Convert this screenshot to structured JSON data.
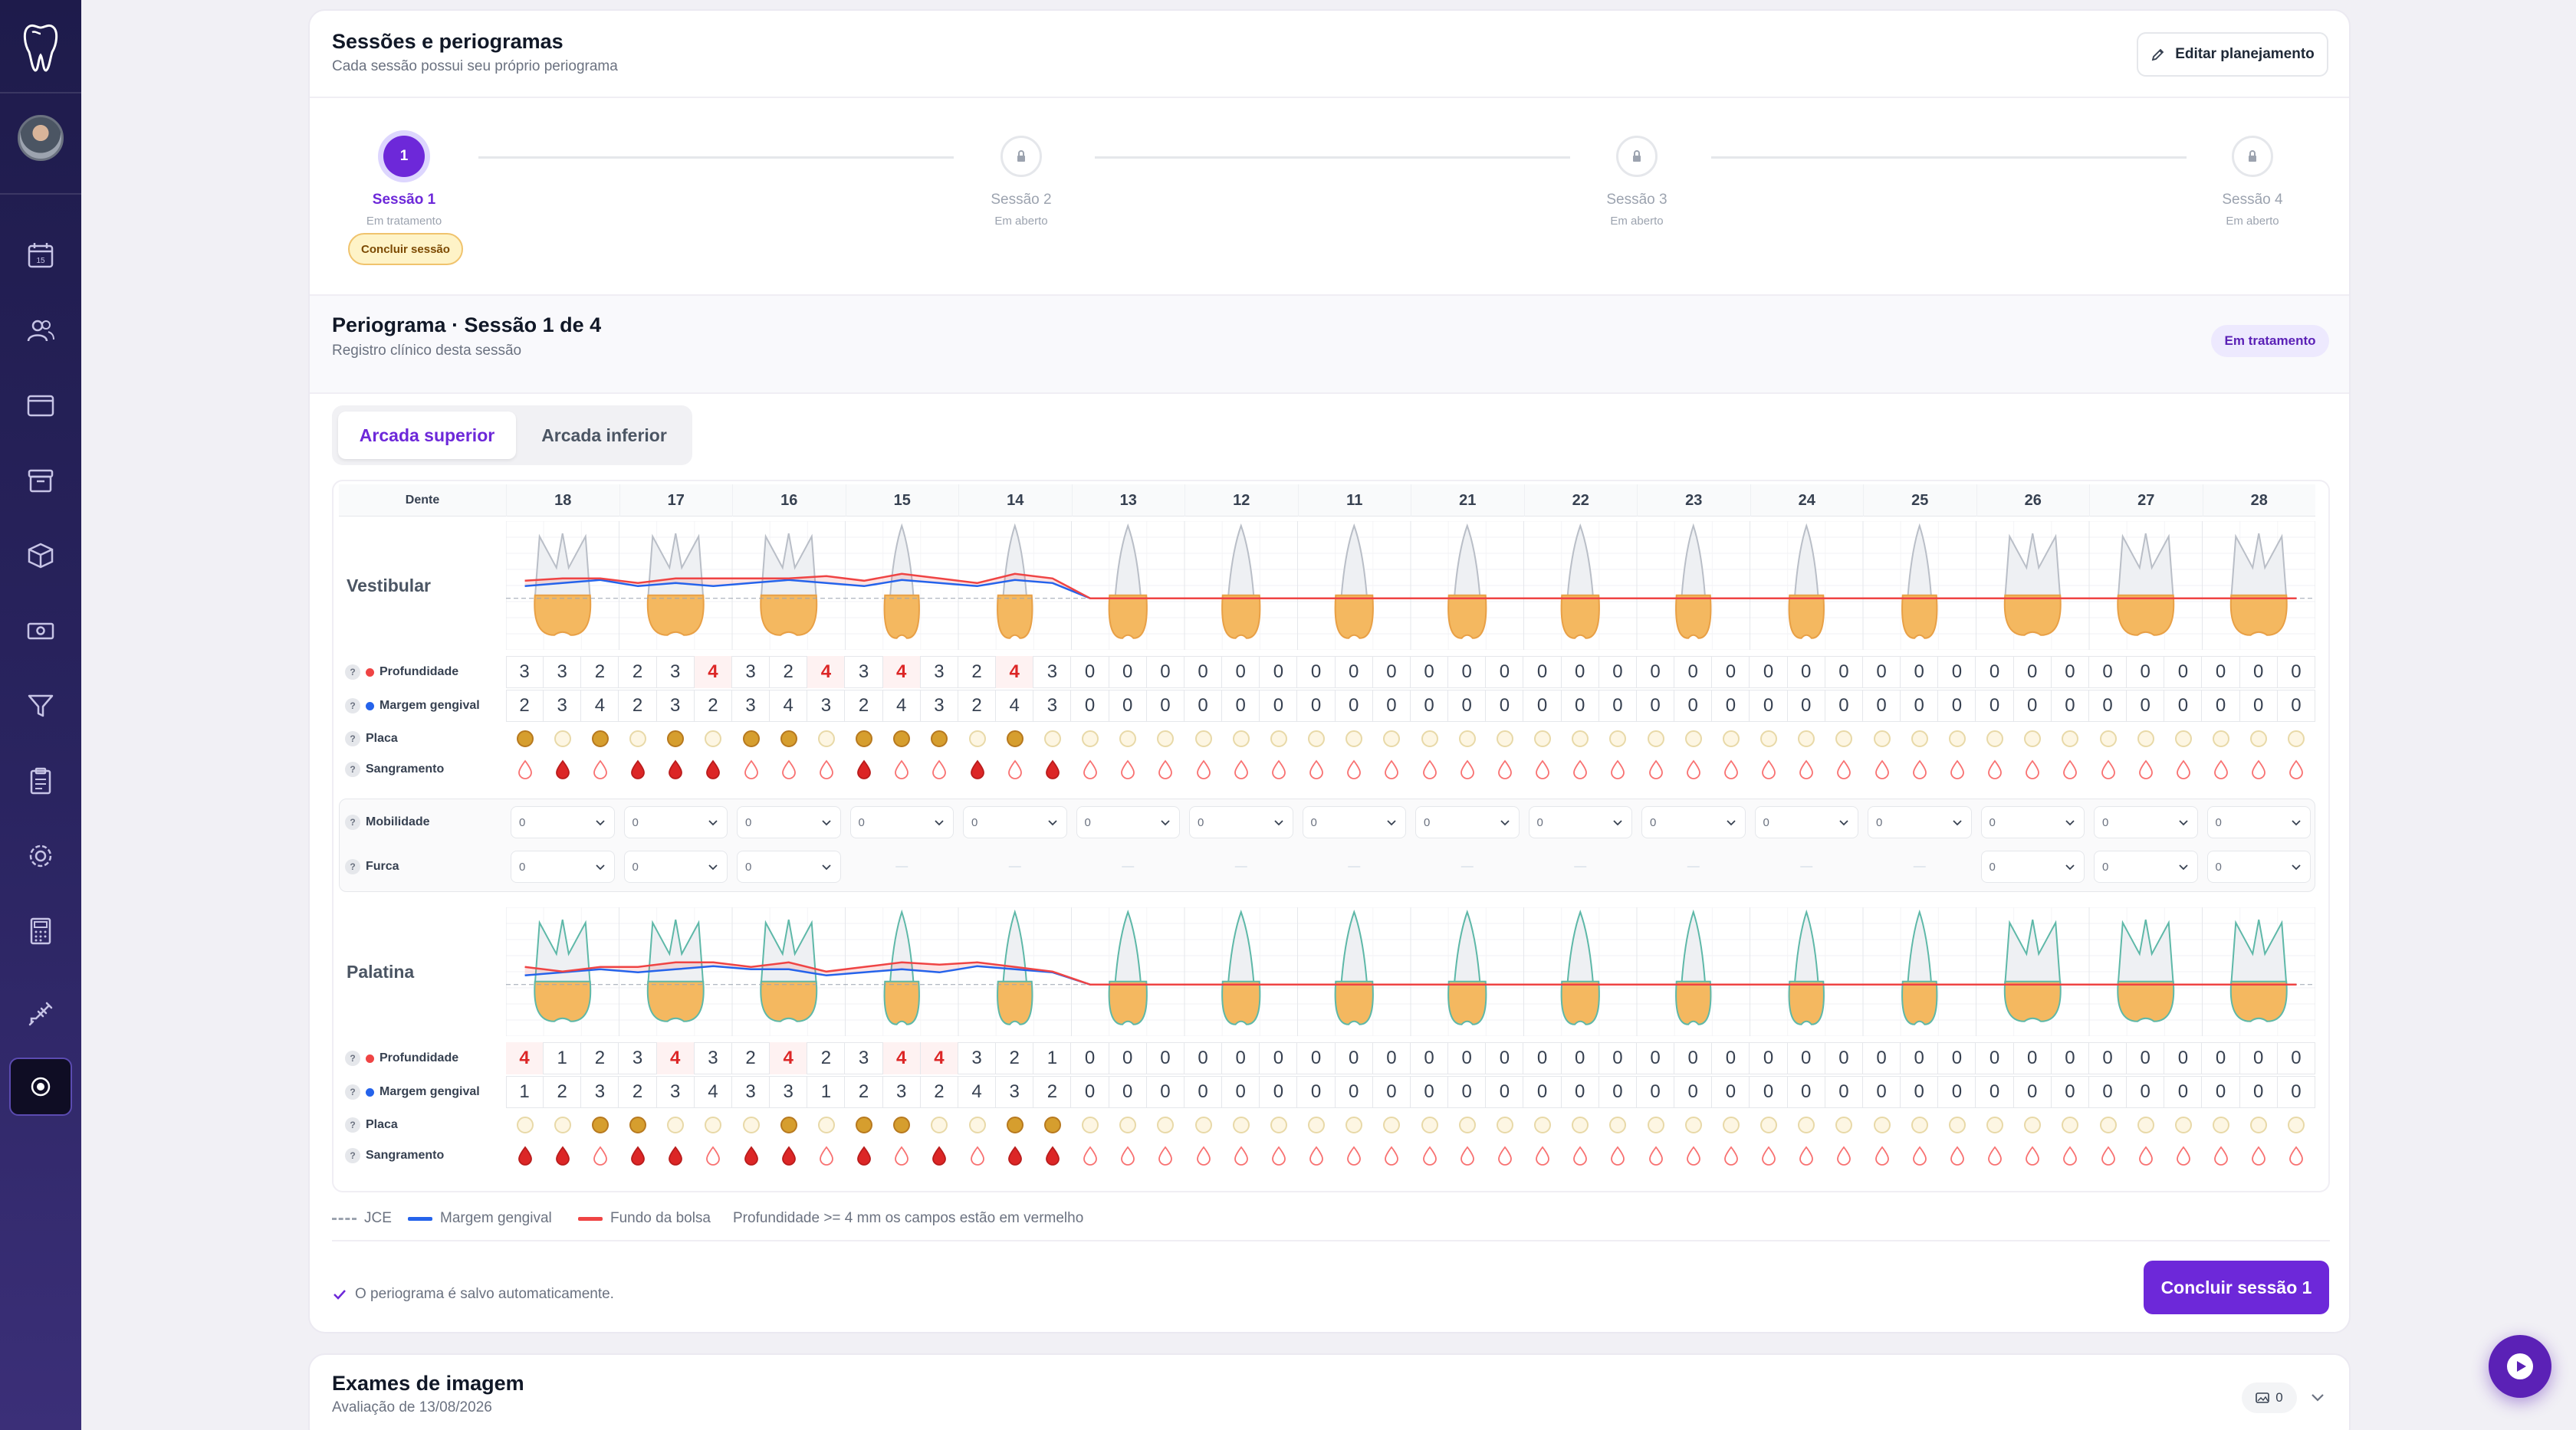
{
  "sidebar": {
    "items": [
      "calendar-icon",
      "patients-icon",
      "window-icon",
      "archive-icon",
      "box-icon",
      "money-icon",
      "filter-icon",
      "clipboard-icon",
      "settings-icon",
      "calculator-icon",
      "syringe-icon",
      "record-icon"
    ],
    "calendar_day": "15"
  },
  "sessions_card": {
    "title": "Sessões e periogramas",
    "subtitle": "Cada sessão possui seu próprio periograma",
    "edit_button": "Editar planejamento",
    "steps": [
      {
        "label": "Sessão 1",
        "status": "Em tratamento",
        "number": "1",
        "active": true
      },
      {
        "label": "Sessão 2",
        "status": "Em aberto",
        "number": "",
        "active": false
      },
      {
        "label": "Sessão 3",
        "status": "Em aberto",
        "number": "",
        "active": false
      },
      {
        "label": "Sessão 4",
        "status": "Em aberto",
        "number": "",
        "active": false
      }
    ],
    "conclude_session_chip": "Concluir sessão"
  },
  "periogram": {
    "title": "Periograma · Sessão 1 de 4",
    "subtitle": "Registro clínico desta sessão",
    "badge": "Em tratamento",
    "tabs": [
      "Arcada superior",
      "Arcada inferior"
    ],
    "active_tab": "Arcada superior",
    "dente_label": "Dente",
    "teeth": [
      "18",
      "17",
      "16",
      "15",
      "14",
      "13",
      "12",
      "11",
      "21",
      "22",
      "23",
      "24",
      "25",
      "26",
      "27",
      "28"
    ],
    "vestibular_label": "Vestibular",
    "palatina_label": "Palatina",
    "row_labels": {
      "profundidade": "Profundidade",
      "margem": "Margem gengival",
      "placa": "Placa",
      "sangramento": "Sangramento",
      "mobilidade": "Mobilidade",
      "furca": "Furca"
    },
    "vestibular": {
      "profundidade": [
        3,
        3,
        2,
        2,
        3,
        4,
        3,
        2,
        4,
        3,
        4,
        3,
        2,
        4,
        3,
        0,
        0,
        0,
        0,
        0,
        0,
        0,
        0,
        0,
        0,
        0,
        0,
        0,
        0,
        0,
        0,
        0,
        0,
        0,
        0,
        0,
        0,
        0,
        0,
        0,
        0,
        0,
        0,
        0,
        0,
        0,
        0,
        0
      ],
      "margem": [
        2,
        3,
        4,
        2,
        3,
        2,
        3,
        4,
        3,
        2,
        4,
        3,
        2,
        4,
        3,
        0,
        0,
        0,
        0,
        0,
        0,
        0,
        0,
        0,
        0,
        0,
        0,
        0,
        0,
        0,
        0,
        0,
        0,
        0,
        0,
        0,
        0,
        0,
        0,
        0,
        0,
        0,
        0,
        0,
        0,
        0,
        0,
        0
      ],
      "placa": [
        1,
        0,
        1,
        0,
        1,
        0,
        1,
        1,
        0,
        1,
        1,
        1,
        0,
        1,
        0,
        0,
        0,
        0,
        0,
        0,
        0,
        0,
        0,
        0,
        0,
        0,
        0,
        0,
        0,
        0,
        0,
        0,
        0,
        0,
        0,
        0,
        0,
        0,
        0,
        0,
        0,
        0,
        0,
        0,
        0,
        0,
        0,
        0
      ],
      "sangramento": [
        0,
        1,
        0,
        1,
        1,
        1,
        0,
        0,
        0,
        1,
        0,
        0,
        1,
        0,
        1,
        0,
        0,
        0,
        0,
        0,
        0,
        0,
        0,
        0,
        0,
        0,
        0,
        0,
        0,
        0,
        0,
        0,
        0,
        0,
        0,
        0,
        0,
        0,
        0,
        0,
        0,
        0,
        0,
        0,
        0,
        0,
        0,
        0
      ]
    },
    "mobilidade": [
      "0",
      "0",
      "0",
      "0",
      "0",
      "0",
      "0",
      "0",
      "0",
      "0",
      "0",
      "0",
      "0",
      "0",
      "0",
      "0"
    ],
    "furca": [
      "0",
      "0",
      "0",
      "—",
      "—",
      "—",
      "—",
      "—",
      "—",
      "—",
      "—",
      "—",
      "—",
      "0",
      "0",
      "0"
    ],
    "palatina": {
      "profundidade": [
        4,
        1,
        2,
        3,
        4,
        3,
        2,
        4,
        2,
        3,
        4,
        4,
        3,
        2,
        1,
        0,
        0,
        0,
        0,
        0,
        0,
        0,
        0,
        0,
        0,
        0,
        0,
        0,
        0,
        0,
        0,
        0,
        0,
        0,
        0,
        0,
        0,
        0,
        0,
        0,
        0,
        0,
        0,
        0,
        0,
        0,
        0,
        0
      ],
      "margem": [
        1,
        2,
        3,
        2,
        3,
        4,
        3,
        3,
        1,
        2,
        3,
        2,
        4,
        3,
        2,
        0,
        0,
        0,
        0,
        0,
        0,
        0,
        0,
        0,
        0,
        0,
        0,
        0,
        0,
        0,
        0,
        0,
        0,
        0,
        0,
        0,
        0,
        0,
        0,
        0,
        0,
        0,
        0,
        0,
        0,
        0,
        0,
        0
      ],
      "placa": [
        0,
        0,
        1,
        1,
        0,
        0,
        0,
        1,
        0,
        1,
        1,
        0,
        0,
        1,
        1,
        0,
        0,
        0,
        0,
        0,
        0,
        0,
        0,
        0,
        0,
        0,
        0,
        0,
        0,
        0,
        0,
        0,
        0,
        0,
        0,
        0,
        0,
        0,
        0,
        0,
        0,
        0,
        0,
        0,
        0,
        0,
        0,
        0
      ],
      "sangramento": [
        1,
        1,
        0,
        1,
        1,
        0,
        1,
        1,
        0,
        1,
        0,
        1,
        0,
        1,
        1,
        0,
        0,
        0,
        0,
        0,
        0,
        0,
        0,
        0,
        0,
        0,
        0,
        0,
        0,
        0,
        0,
        0,
        0,
        0,
        0,
        0,
        0,
        0,
        0,
        0,
        0,
        0,
        0,
        0,
        0,
        0,
        0,
        0
      ]
    },
    "legend": {
      "jce": "JCE",
      "margem": "Margem gengival",
      "fundo": "Fundo da bolsa",
      "note": "Profundidade >= 4 mm os campos estão em vermelho"
    },
    "autosave": "O periograma é salvo automaticamente.",
    "conclude_button": "Concluir sessão 1",
    "colors": {
      "accent": "#6d28d9",
      "red": "#dc2626",
      "blue": "#2563eb",
      "plaque": "#d69e2e"
    }
  },
  "exams_card": {
    "title": "Exames de imagem",
    "subtitle": "Avaliação de 13/08/2026",
    "count": "0"
  }
}
